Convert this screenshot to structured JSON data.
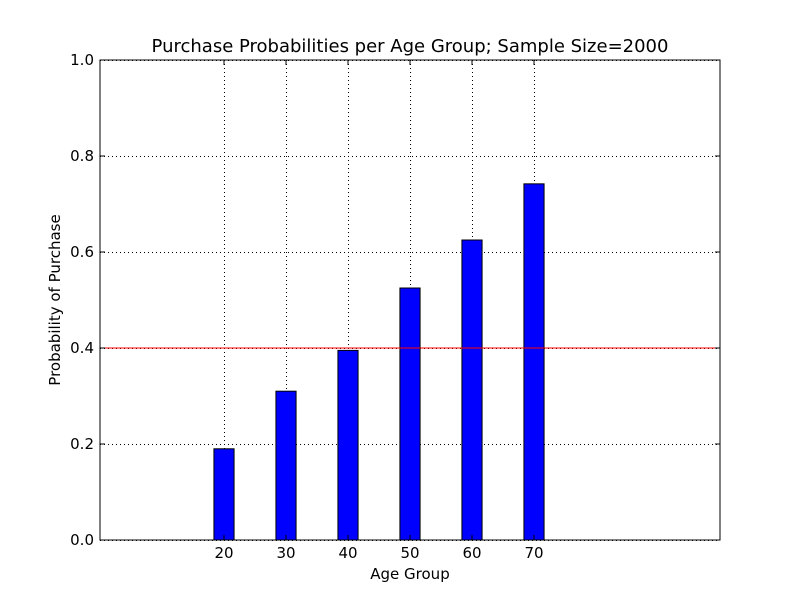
{
  "chart_data": {
    "type": "bar",
    "title": "Purchase Probabilities per Age Group; Sample Size=2000",
    "xlabel": "Age Group",
    "ylabel": "Probability of Purchase",
    "categories": [
      "20",
      "30",
      "40",
      "50",
      "60",
      "70"
    ],
    "x": [
      20,
      30,
      40,
      50,
      60,
      70
    ],
    "values": [
      0.19,
      0.31,
      0.395,
      0.525,
      0.625,
      0.742
    ],
    "xlim": [
      0,
      100
    ],
    "ylim": [
      0.0,
      1.0
    ],
    "yticks": [
      "0.0",
      "0.2",
      "0.4",
      "0.6",
      "0.8",
      "1.0"
    ],
    "ytick_values": [
      0.0,
      0.2,
      0.4,
      0.6,
      0.8,
      1.0
    ],
    "bar_width": 5,
    "reference_line": {
      "y": 0.4,
      "color": "#ff0000"
    },
    "grid": true,
    "colors": {
      "bar": "#0000ff",
      "bar_edge": "#000000",
      "grid": "#000000"
    }
  }
}
